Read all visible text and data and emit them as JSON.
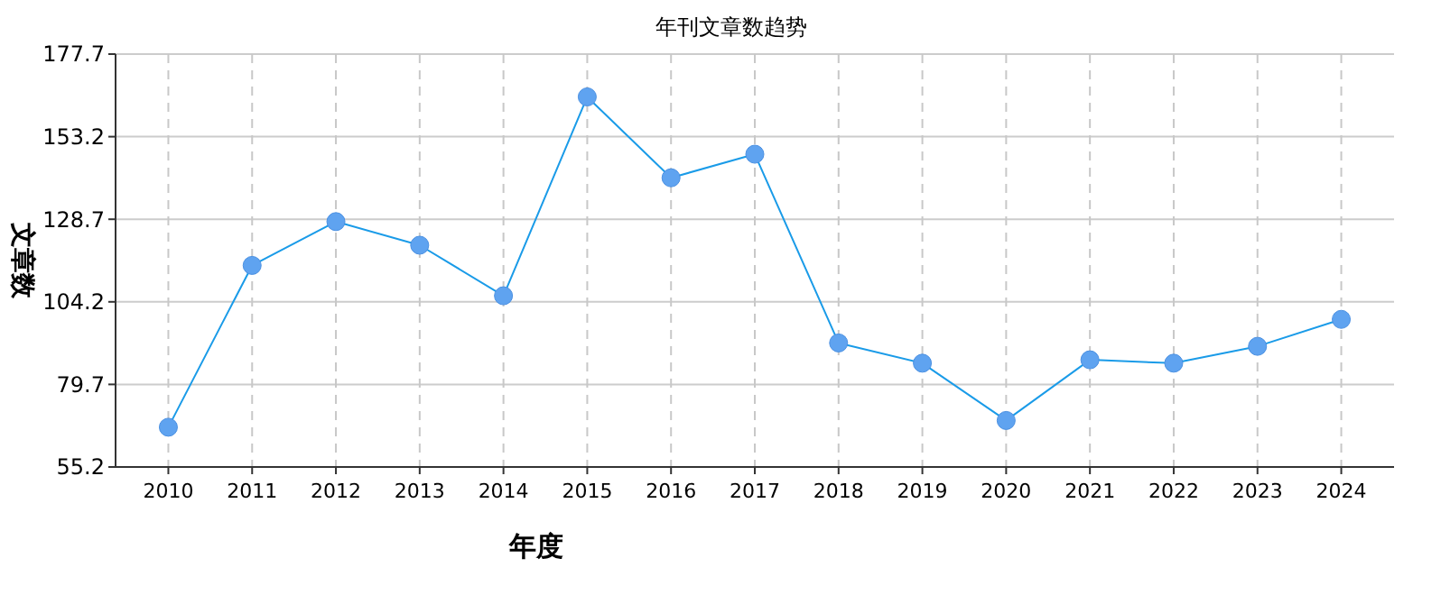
{
  "chart_data": {
    "type": "line",
    "title": "年刊文章数趋势",
    "xlabel": "年度",
    "ylabel": "文章数",
    "categories": [
      "2010",
      "2011",
      "2012",
      "2013",
      "2014",
      "2015",
      "2016",
      "2017",
      "2018",
      "2019",
      "2020",
      "2021",
      "2022",
      "2023",
      "2024"
    ],
    "series": [
      {
        "color": "#1a9be8",
        "values": [
          67,
          115,
          128,
          121,
          106,
          165,
          141,
          148,
          92,
          86,
          69,
          87,
          86,
          91,
          99
        ]
      }
    ],
    "ylim": [
      55.2,
      177.7
    ],
    "yticks": [
      55.2,
      79.7,
      104.2,
      128.7,
      153.2,
      177.7
    ],
    "grid": true,
    "marker": "circle",
    "line_style": "solid"
  }
}
